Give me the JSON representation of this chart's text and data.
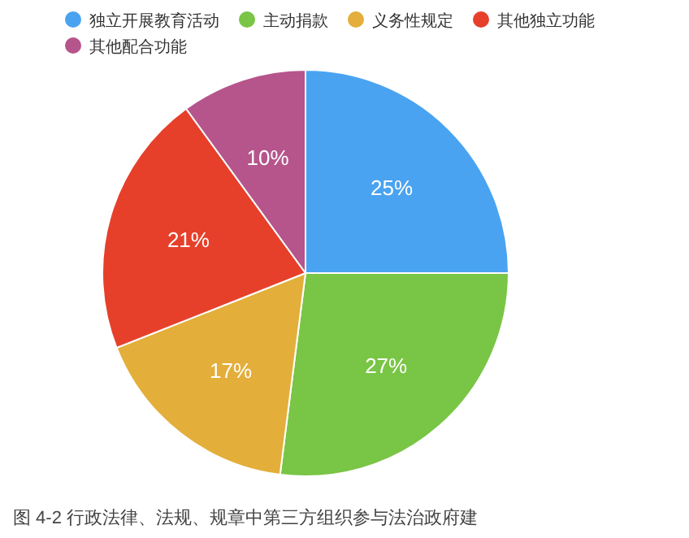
{
  "chart_data": {
    "type": "pie",
    "categories": [
      "独立开展教育活动",
      "主动捐款",
      "义务性规定",
      "其他独立功能",
      "其他配合功能"
    ],
    "values": [
      25,
      27,
      17,
      21,
      10
    ],
    "colors": [
      "#4aa3f0",
      "#79c545",
      "#e3ae3a",
      "#e6402b",
      "#b5558c"
    ],
    "value_labels": [
      "25%",
      "27%",
      "17%",
      "21%",
      "10%"
    ],
    "legend": "top",
    "annotations": [
      "图 4-2 行政法律、法规、规章中第三方组织参与法治政府建"
    ]
  }
}
